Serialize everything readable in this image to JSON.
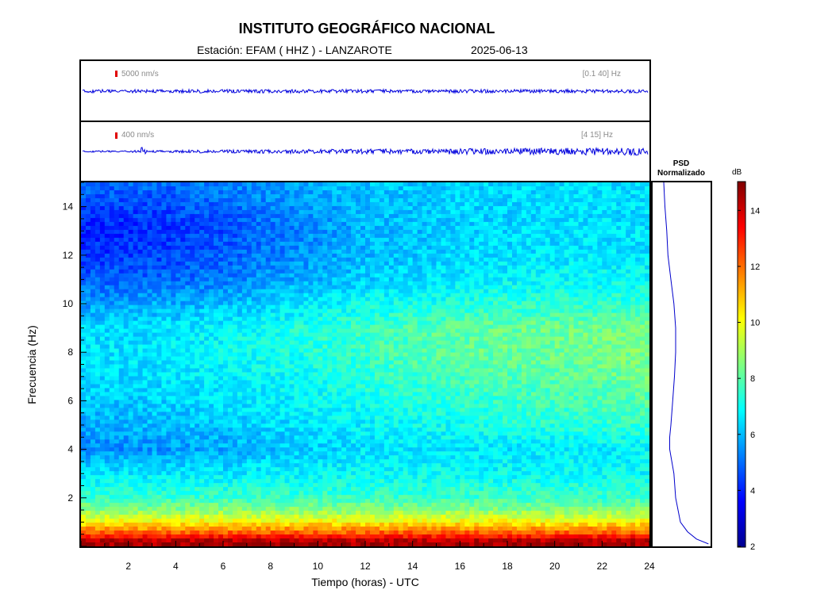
{
  "header": {
    "title": "INSTITUTO GEOGRÁFICO NACIONAL",
    "station_line": "Estación:  EFAM ( HHZ ) - LANZAROTE",
    "date": "2025-06-13"
  },
  "traces": [
    {
      "scale_label": "5000 nm/s",
      "band_label": "[0.1 40] Hz"
    },
    {
      "scale_label": "400 nm/s",
      "band_label": "[4 15] Hz"
    }
  ],
  "psd_panel": {
    "title_line1": "PSD",
    "title_line2": "Normalizado"
  },
  "colorbar": {
    "unit": "dB",
    "ticks": [
      2,
      4,
      6,
      8,
      10,
      12,
      14
    ],
    "range": [
      2,
      15
    ]
  },
  "chart_data": {
    "type": "heatmap",
    "xlabel": "Tiempo (horas) - UTC",
    "ylabel": "Frecuencia  (Hz)",
    "xlim": [
      0,
      24
    ],
    "ylim": [
      0,
      15
    ],
    "x_ticks": [
      2,
      4,
      6,
      8,
      10,
      12,
      14,
      16,
      18,
      20,
      22,
      24
    ],
    "y_ticks": [
      2,
      4,
      6,
      8,
      10,
      12,
      14
    ],
    "time_bins_hours": [
      0,
      3,
      6,
      9,
      12,
      15,
      18,
      21,
      24
    ],
    "freq_bins_hz": [
      0.2,
      0.5,
      1,
      1.5,
      2,
      3,
      4,
      5,
      6,
      7,
      8,
      9,
      10,
      11,
      12,
      13,
      14,
      15
    ],
    "power_db_by_freq": [
      [
        14.5,
        14.5,
        14.5,
        14.5,
        14.5,
        14.5,
        14.5,
        14.5,
        14.5
      ],
      [
        12.5,
        12.5,
        12.5,
        12.5,
        12.5,
        12.5,
        12.5,
        12.5,
        12.5
      ],
      [
        10.2,
        10.2,
        10.2,
        10.2,
        10.2,
        10.2,
        10.2,
        10.2,
        10.2
      ],
      [
        8.6,
        8.6,
        8.6,
        8.6,
        8.6,
        8.6,
        8.6,
        8.6,
        8.6
      ],
      [
        7.6,
        7.6,
        7.6,
        7.6,
        7.6,
        7.6,
        7.6,
        7.6,
        7.6
      ],
      [
        6.6,
        6.6,
        6.6,
        6.8,
        6.9,
        6.9,
        6.9,
        6.9,
        6.9
      ],
      [
        5.4,
        5.5,
        5.8,
        6.2,
        6.5,
        6.6,
        6.6,
        6.7,
        6.8
      ],
      [
        5.8,
        6.0,
        6.2,
        6.5,
        6.8,
        7.0,
        7.2,
        7.4,
        7.5
      ],
      [
        6.2,
        6.3,
        6.5,
        6.8,
        7.1,
        7.4,
        7.6,
        7.8,
        8.0
      ],
      [
        6.4,
        6.5,
        6.7,
        7.0,
        7.4,
        7.7,
        7.9,
        8.1,
        8.3
      ],
      [
        6.5,
        6.6,
        6.9,
        7.2,
        7.6,
        8.0,
        8.2,
        8.3,
        8.5
      ],
      [
        6.4,
        6.5,
        6.8,
        7.2,
        7.6,
        8.0,
        8.2,
        8.3,
        8.4
      ],
      [
        5.6,
        5.8,
        6.0,
        6.5,
        7.0,
        7.2,
        7.4,
        7.4,
        7.4
      ],
      [
        4.8,
        4.9,
        5.2,
        5.8,
        6.3,
        6.6,
        6.8,
        6.9,
        7.0
      ],
      [
        4.2,
        4.4,
        4.8,
        5.4,
        6.0,
        6.3,
        6.5,
        6.6,
        6.6
      ],
      [
        4.0,
        4.2,
        4.6,
        5.3,
        5.9,
        6.2,
        6.4,
        6.5,
        6.5
      ],
      [
        4.4,
        4.5,
        4.9,
        5.5,
        6.0,
        6.3,
        6.4,
        6.5,
        6.5
      ],
      [
        5.0,
        5.0,
        5.3,
        5.8,
        6.1,
        6.3,
        6.4,
        6.5,
        6.5
      ]
    ],
    "psd_normalized_profile": {
      "freq_hz": [
        0.1,
        0.3,
        0.6,
        1,
        2,
        3,
        4,
        4.5,
        5,
        6,
        7,
        8,
        9,
        10,
        11,
        12,
        13,
        14,
        15
      ],
      "value": [
        0.75,
        0.55,
        0.4,
        0.28,
        0.2,
        0.17,
        0.1,
        0.1,
        0.12,
        0.15,
        0.18,
        0.2,
        0.2,
        0.17,
        0.12,
        0.07,
        0.05,
        0.02,
        0.0
      ]
    }
  }
}
